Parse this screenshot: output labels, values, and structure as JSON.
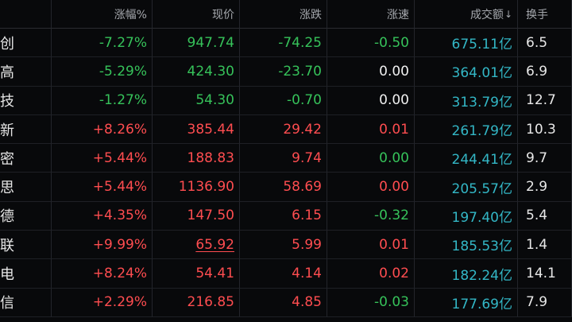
{
  "headers": {
    "name": "",
    "change_pct": "涨幅%",
    "price": "现价",
    "change": "涨跌",
    "speed": "涨速",
    "turnover": "成交额",
    "turnover_sort": "↓",
    "turnover_rate": "换手"
  },
  "rows": [
    {
      "name": "创",
      "change_pct": "-7.27%",
      "price": "947.74",
      "change": "-74.25",
      "speed": "-0.50",
      "turnover": "675.11亿",
      "turnover_rate": "6.5"
    },
    {
      "name": "高",
      "change_pct": "-5.29%",
      "price": "424.30",
      "change": "-23.70",
      "speed": "0.00",
      "turnover": "364.01亿",
      "turnover_rate": "6.9"
    },
    {
      "name": "技",
      "change_pct": "-1.27%",
      "price": "54.30",
      "change": "-0.70",
      "speed": "0.00",
      "turnover": "313.79亿",
      "turnover_rate": "12.7"
    },
    {
      "name": "新",
      "change_pct": "+8.26%",
      "price": "385.44",
      "change": "29.42",
      "speed": "0.01",
      "turnover": "261.79亿",
      "turnover_rate": "10.3"
    },
    {
      "name": "密",
      "change_pct": "+5.44%",
      "price": "188.83",
      "change": "9.74",
      "speed": "0.00",
      "turnover": "244.41亿",
      "turnover_rate": "9.7"
    },
    {
      "name": "思",
      "change_pct": "+5.44%",
      "price": "1136.90",
      "change": "58.69",
      "speed": "0.00",
      "turnover": "205.57亿",
      "turnover_rate": "2.9"
    },
    {
      "name": "德",
      "change_pct": "+4.35%",
      "price": "147.50",
      "change": "6.15",
      "speed": "-0.32",
      "turnover": "197.40亿",
      "turnover_rate": "5.4"
    },
    {
      "name": "联",
      "change_pct": "+9.99%",
      "price": "65.92",
      "change": "5.99",
      "speed": "0.01",
      "turnover": "185.53亿",
      "turnover_rate": "1.4"
    },
    {
      "name": "电",
      "change_pct": "+8.24%",
      "price": "54.41",
      "change": "4.14",
      "speed": "0.02",
      "turnover": "182.24亿",
      "turnover_rate": "14.1"
    },
    {
      "name": "信",
      "change_pct": "+2.29%",
      "price": "216.85",
      "change": "4.85",
      "speed": "-0.03",
      "turnover": "177.69亿",
      "turnover_rate": "7.9"
    }
  ],
  "colors": {
    "background": "#08090b",
    "down": "#36c25a",
    "up": "#ff4d50",
    "amount": "#33b7c6",
    "neutral": "#f0f0f0"
  }
}
